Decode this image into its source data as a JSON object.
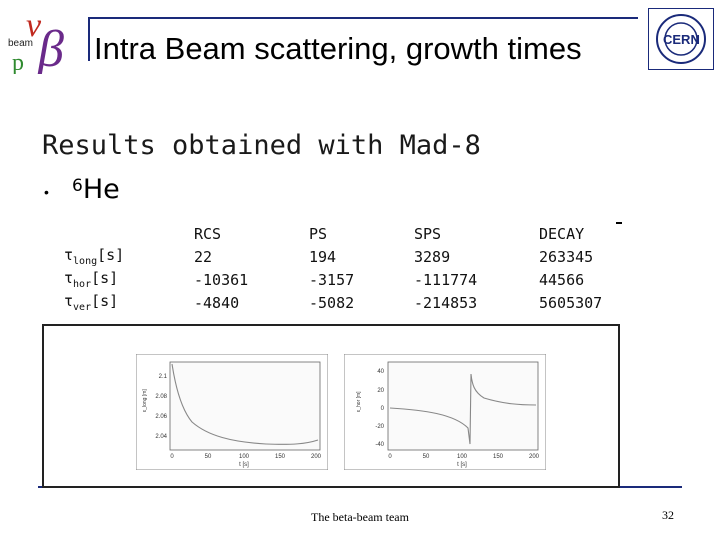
{
  "title": "Intra Beam scattering, growth times",
  "subtitle": "Results obtained with Mad-8",
  "bullet": {
    "marker": "•",
    "mass_number": "6",
    "element": "He"
  },
  "table": {
    "headers": [
      "",
      "RCS",
      "PS",
      "SPS",
      "DECAY"
    ],
    "rows": [
      {
        "label_main": "τ",
        "label_sub": "long",
        "label_unit": "[s]",
        "values": [
          "22",
          "194",
          "3289",
          "263345"
        ]
      },
      {
        "label_main": "τ",
        "label_sub": "hor",
        "label_unit": "[s]",
        "values": [
          "-10361",
          "-3157",
          "-111774",
          "44566"
        ]
      },
      {
        "label_main": "τ",
        "label_sub": "ver",
        "label_unit": "[s]",
        "values": [
          "-4840",
          "-5082",
          "-214853",
          "5605307"
        ]
      }
    ]
  },
  "plots": {
    "plot1": {
      "yticks": [
        "2.1",
        "2.08",
        "2.06",
        "2.04"
      ],
      "xticks": [
        "0",
        "50",
        "100",
        "150",
        "200"
      ],
      "xlabel": "t [s]",
      "ylabel": "ε_long [m]"
    },
    "plot2": {
      "yticks": [
        "40",
        "20",
        "0",
        "-20",
        "-40"
      ],
      "xticks": [
        "0",
        "50",
        "100",
        "150",
        "200"
      ],
      "xlabel": "t [s]",
      "ylabel": "ε_hor [m]"
    }
  },
  "logos": {
    "left_text": "beam"
  },
  "footer": "The beta-beam team",
  "page_number": "32",
  "colors": {
    "accent": "#1a2a7a",
    "logo_red": "#c0281e",
    "logo_green": "#2f8a2f",
    "logo_purple": "#6a2a8a"
  }
}
